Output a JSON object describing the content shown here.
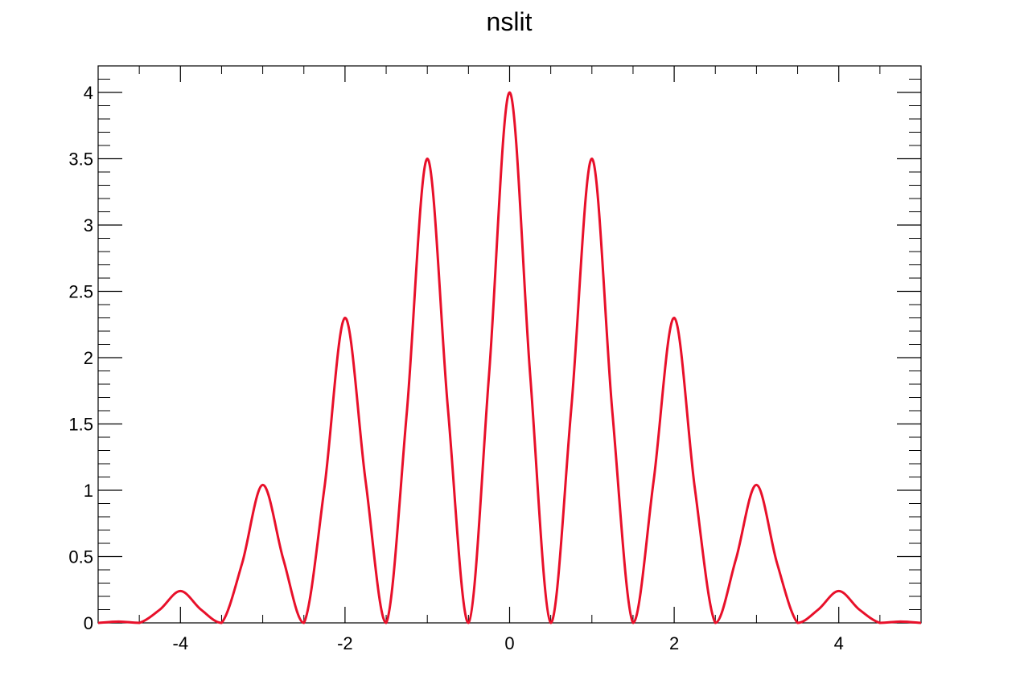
{
  "chart_data": {
    "type": "line",
    "title": "nslit",
    "xlabel": "",
    "ylabel": "",
    "xlim": [
      -5,
      5
    ],
    "ylim": [
      0,
      4.2
    ],
    "grid": false,
    "legend": "none",
    "x_ticks": [
      -4,
      -2,
      0,
      2,
      4
    ],
    "x_tick_labels": [
      "-4",
      "-2",
      "0",
      "2",
      "4"
    ],
    "y_ticks": [
      0,
      0.5,
      1,
      1.5,
      2,
      2.5,
      3,
      3.5,
      4
    ],
    "y_tick_labels": [
      "0",
      "0.5",
      "1",
      "1.5",
      "2",
      "2.5",
      "3",
      "3.5",
      "4"
    ],
    "series": [
      {
        "color": "#e8102a",
        "x": [
          -5,
          -4.75,
          -4.5,
          -4.25,
          -4,
          -3.75,
          -3.5,
          -3.25,
          -3,
          -2.75,
          -2.5,
          -2.25,
          -2,
          -1.75,
          -1.5,
          -1.25,
          -1,
          -0.75,
          -0.5,
          -0.25,
          0,
          0.25,
          0.5,
          0.75,
          1,
          1.25,
          1.5,
          1.75,
          2,
          2.25,
          2.5,
          2.75,
          3,
          3.25,
          3.5,
          3.75,
          4,
          4.25,
          4.5,
          4.75,
          5
        ],
        "y": [
          0,
          0.01,
          0,
          0.1,
          0.24,
          0.1,
          0,
          0.45,
          1.04,
          0.48,
          0,
          1.02,
          2.3,
          1.07,
          0,
          1.58,
          3.5,
          1.62,
          0,
          1.87,
          4,
          1.87,
          0,
          1.62,
          3.5,
          1.58,
          0,
          1.07,
          2.3,
          1.02,
          0,
          0.48,
          1.04,
          0.45,
          0,
          0.1,
          0.24,
          0.1,
          0,
          0.01,
          0
        ]
      }
    ]
  }
}
